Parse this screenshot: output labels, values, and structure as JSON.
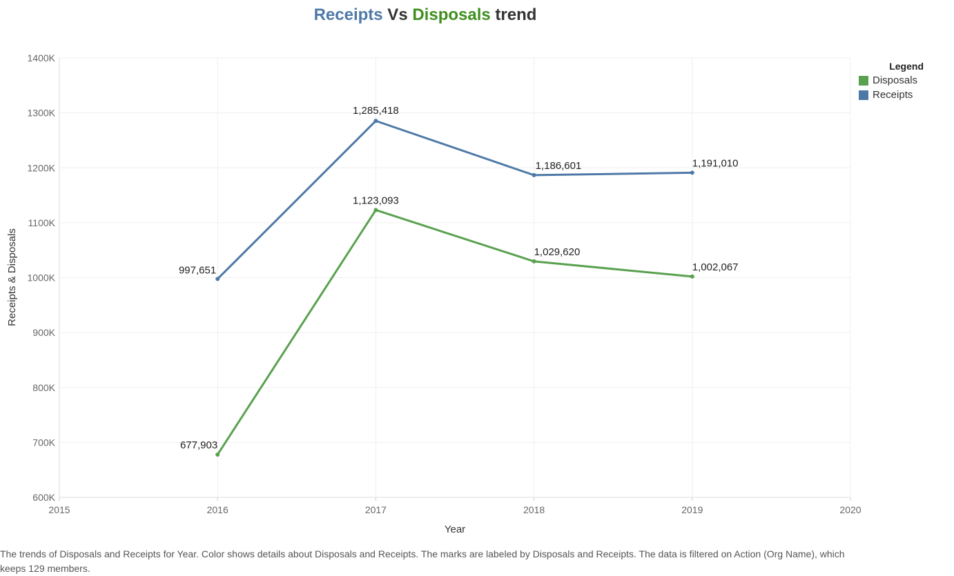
{
  "title": {
    "part1": "Receipts",
    "part2": " Vs ",
    "part3": "Disposals",
    "part4": " trend"
  },
  "legend": {
    "title": "Legend",
    "items": [
      {
        "label": "Disposals",
        "color": "#59a14f"
      },
      {
        "label": "Receipts",
        "color": "#4e79a7"
      }
    ]
  },
  "caption": "The trends of Disposals and Receipts for Year.  Color shows details about Disposals and Receipts.  The marks are labeled by Disposals and Receipts. The data is filtered on Action (Org Name), which keeps 129 members.",
  "chart_data": {
    "type": "line",
    "title": "Receipts Vs Disposals trend",
    "xlabel": "Year",
    "ylabel": "Receipts & Disposals",
    "x": [
      2016,
      2017,
      2018,
      2019
    ],
    "xlim": [
      2015,
      2020
    ],
    "xticks": [
      "2015",
      "2016",
      "2017",
      "2018",
      "2019",
      "2020"
    ],
    "ylim": [
      600000,
      1400000
    ],
    "yticks": [
      "600K",
      "700K",
      "800K",
      "900K",
      "1000K",
      "1100K",
      "1200K",
      "1300K",
      "1400K"
    ],
    "grid": true,
    "legend_position": "top-right",
    "series": [
      {
        "name": "Receipts",
        "color": "#4e79a7",
        "values": [
          997651,
          1285418,
          1186601,
          1191010
        ],
        "labels": [
          "997,651",
          "1,285,418",
          "1,186,601",
          "1,191,010"
        ]
      },
      {
        "name": "Disposals",
        "color": "#59a14f",
        "values": [
          677903,
          1123093,
          1029620,
          1002067
        ],
        "labels": [
          "677,903",
          "1,123,093",
          "1,029,620",
          "1,002,067"
        ]
      }
    ]
  }
}
